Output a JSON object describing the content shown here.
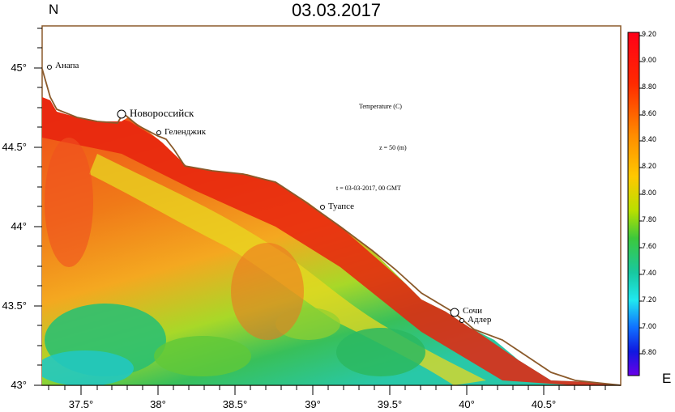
{
  "title": "03.03.2017",
  "north_label": "N",
  "east_label": "E",
  "annotations": {
    "variable": "Temperature (C)",
    "depth": "z = 50 (m)",
    "time": "t = 03-03-2017, 00 GMT"
  },
  "lat_ticks": [
    "45°",
    "44.5°",
    "44°",
    "43.5°",
    "43°"
  ],
  "lon_ticks": [
    "37.5°",
    "38°",
    "38.5°",
    "39°",
    "39.5°",
    "40°",
    "40.5°"
  ],
  "colorbar_ticks": [
    "9.20",
    "9.00",
    "8.80",
    "8.60",
    "8.40",
    "8.20",
    "8.00",
    "7.80",
    "7.60",
    "7.40",
    "7.20",
    "7.00",
    "6.80"
  ],
  "cities": [
    {
      "name": "Анапа"
    },
    {
      "name": "Новороссийск"
    },
    {
      "name": "Геленджик"
    },
    {
      "name": "Туапсе"
    },
    {
      "name": "Сочи"
    },
    {
      "name": "Адлер"
    }
  ],
  "colors": {
    "coast": "#8b5a2b",
    "warm": "#e81e0e",
    "mid": "#f08a10",
    "cool": "#2ec07a",
    "cold": "#20c8d0"
  }
}
